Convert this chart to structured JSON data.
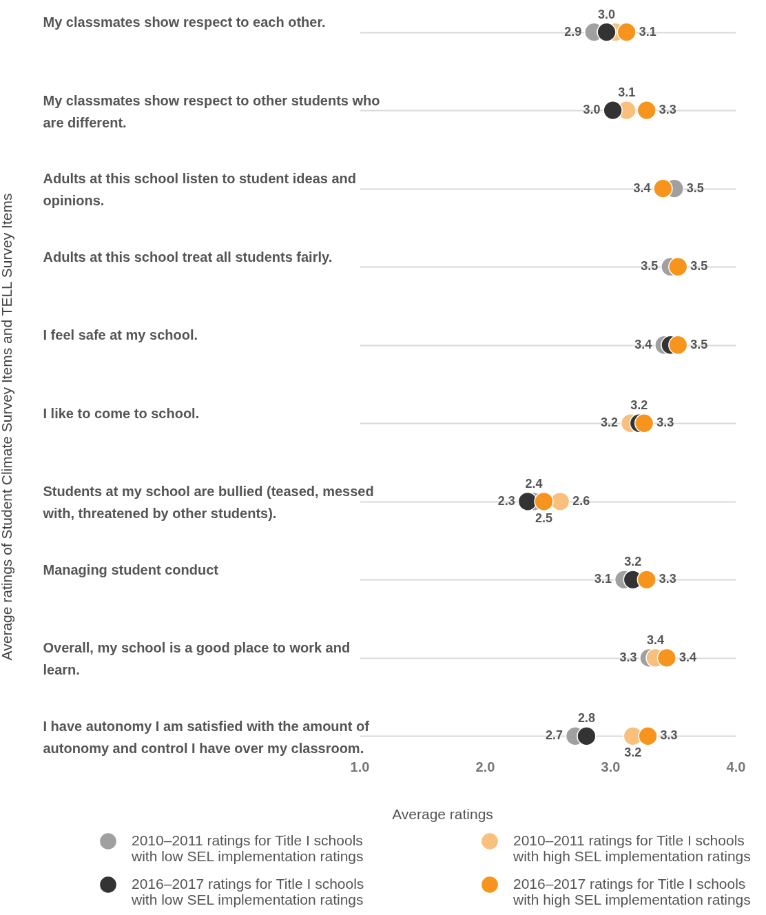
{
  "chart_data": {
    "type": "scatter",
    "categories": [
      "My classmates show respect to each other.",
      "My classmates show respect to other students who are different.",
      "Adults at this school listen to student ideas and opinions.",
      "Adults at this school treat all students fairly.",
      "I feel safe at my school.",
      "I like to come to school.",
      "Students at my school are bullied (teased, messed with, threatened by other students).",
      "Managing student conduct",
      "Overall, my school is a good place to work and learn.",
      "I have autonomy I am satisfied with the amount of autonomy and control I have over my classroom."
    ],
    "series": [
      {
        "name": "2010–2011 ratings for Title I schools with low SEL implementation ratings",
        "color": "#a0a0a0",
        "values": [
          2.87,
          null,
          3.51,
          3.48,
          3.43,
          null,
          2.39,
          3.11,
          3.31,
          2.72
        ],
        "value_labels": [
          "2.9",
          null,
          "3.5",
          "3.5",
          "3.4",
          null,
          "2.4",
          "3.1",
          "3.3",
          "2.7"
        ]
      },
      {
        "name": "2010–2011 ratings for Title I schools with high SEL implementation ratings",
        "color": "#f9bf7d",
        "values": [
          3.04,
          3.13,
          null,
          null,
          null,
          3.16,
          2.6,
          null,
          3.36,
          3.18
        ],
        "value_labels": [
          null,
          "3.1",
          null,
          null,
          null,
          "3.2",
          "2.6",
          null,
          "3.4",
          "3.2"
        ]
      },
      {
        "name": "2016–2017 ratings for Title I schools with low SEL implementation ratings",
        "color": "#333333",
        "values": [
          2.97,
          3.02,
          null,
          null,
          3.48,
          3.23,
          2.34,
          3.18,
          null,
          2.81
        ],
        "value_labels": [
          "3.0",
          "3.0",
          null,
          null,
          null,
          "3.2",
          "2.3",
          "3.2",
          null,
          "2.8"
        ]
      },
      {
        "name": "2016–2017 ratings for Title I schools with high SEL implementation ratings",
        "color": "#f7941d",
        "values": [
          3.13,
          3.29,
          3.42,
          3.54,
          3.54,
          3.27,
          2.47,
          3.29,
          3.45,
          3.3
        ],
        "value_labels": [
          "3.1",
          "3.3",
          "3.4",
          "3.5",
          "3.5",
          "3.3",
          "2.5",
          "3.3",
          "3.4",
          "3.3"
        ]
      }
    ],
    "xlabel": "Average ratings",
    "ylabel": "Average ratings of Student Climate Survey Items and TELL Survey Items",
    "xlim": [
      1.0,
      4.0
    ],
    "xticks": [
      {
        "value": 1,
        "label": "1.0"
      },
      {
        "value": 2,
        "label": "2.0"
      },
      {
        "value": 3,
        "label": "3.0"
      },
      {
        "value": 4,
        "label": "4.0"
      }
    ],
    "grid": "y",
    "legend": "bottom",
    "marker": "circle",
    "orientation": "horizontal"
  }
}
